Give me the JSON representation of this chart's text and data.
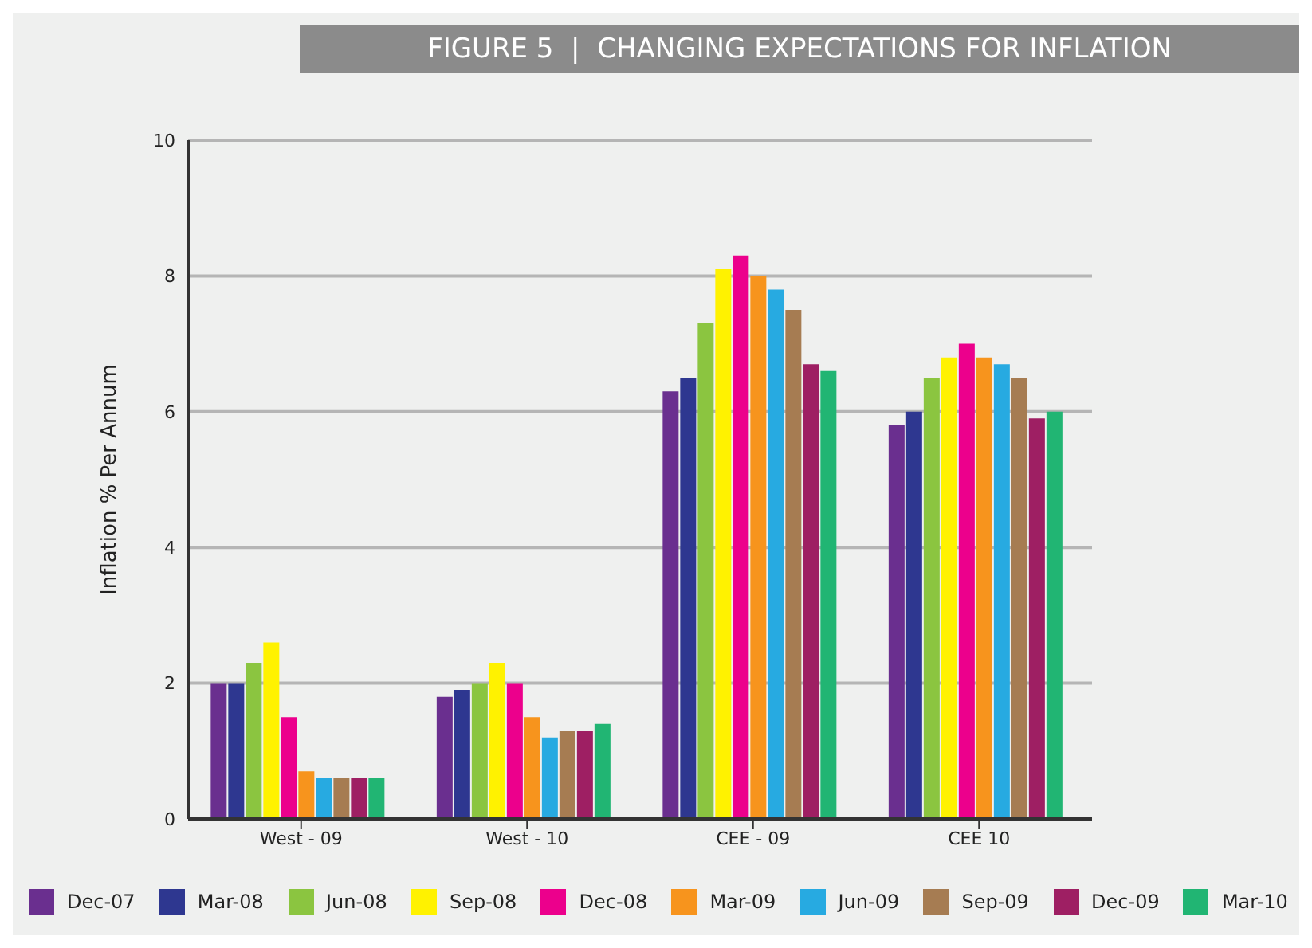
{
  "chart_data": {
    "type": "bar",
    "title": "FIGURE 5  |  CHANGING EXPECTATIONS FOR INFLATION",
    "ylabel": "Inflation % Per Annum",
    "categories": [
      "West - 09",
      "West - 10",
      "CEE - 09",
      "CEE 10"
    ],
    "series": [
      {
        "name": "Dec-07",
        "color": "#6a2f8f",
        "values": [
          2.0,
          1.8,
          6.3,
          5.8
        ]
      },
      {
        "name": "Mar-08",
        "color": "#2e3790",
        "values": [
          2.0,
          1.9,
          6.5,
          6.0
        ]
      },
      {
        "name": "Jun-08",
        "color": "#8bc540",
        "values": [
          2.3,
          2.0,
          7.3,
          6.5
        ]
      },
      {
        "name": "Sep-08",
        "color": "#fff200",
        "values": [
          2.6,
          2.3,
          8.1,
          6.8
        ]
      },
      {
        "name": "Dec-08",
        "color": "#ec008c",
        "values": [
          1.5,
          2.0,
          8.3,
          7.0
        ]
      },
      {
        "name": "Mar-09",
        "color": "#f7941d",
        "values": [
          0.7,
          1.5,
          8.0,
          6.8
        ]
      },
      {
        "name": "Jun-09",
        "color": "#27aae1",
        "values": [
          0.6,
          1.2,
          7.8,
          6.7
        ]
      },
      {
        "name": "Sep-09",
        "color": "#a67c52",
        "values": [
          0.6,
          1.3,
          7.5,
          6.5
        ]
      },
      {
        "name": "Dec-09",
        "color": "#9e1f63",
        "values": [
          0.6,
          1.3,
          6.7,
          5.9
        ]
      },
      {
        "name": "Mar-10",
        "color": "#21b573",
        "values": [
          0.6,
          1.4,
          6.6,
          6.0
        ]
      }
    ],
    "ylim": [
      0,
      10
    ],
    "yticks": [
      0,
      2,
      4,
      6,
      8,
      10
    ],
    "grid": "y",
    "legend": "bottom"
  }
}
